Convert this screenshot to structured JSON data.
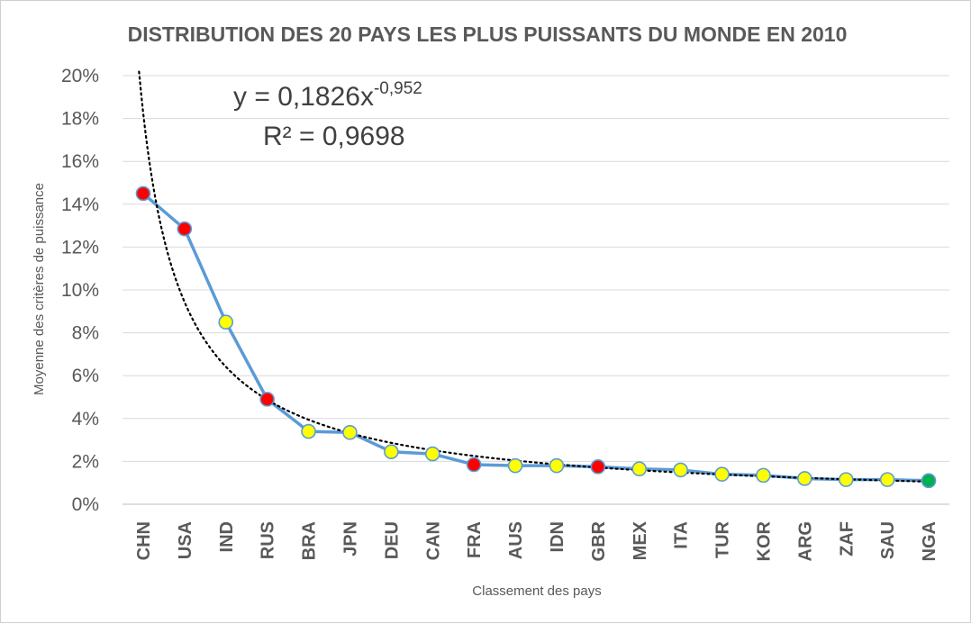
{
  "chart_data": {
    "type": "line",
    "title": "DISTRIBUTION DES 20 PAYS LES PLUS PUISSANTS DU MONDE EN 2010",
    "xlabel": "Classement des pays",
    "ylabel": "Moyenne des critères de puissance",
    "categories": [
      "CHN",
      "USA",
      "IND",
      "RUS",
      "BRA",
      "JPN",
      "DEU",
      "CAN",
      "FRA",
      "AUS",
      "IDN",
      "GBR",
      "MEX",
      "ITA",
      "TUR",
      "KOR",
      "ARG",
      "ZAF",
      "SAU",
      "NGA"
    ],
    "yticks": [
      "0%",
      "2%",
      "4%",
      "6%",
      "8%",
      "10%",
      "12%",
      "14%",
      "16%",
      "18%",
      "20%"
    ],
    "ylim": [
      0,
      20
    ],
    "grid": true,
    "series": [
      {
        "values": [
          14.5,
          12.85,
          8.5,
          4.9,
          3.4,
          3.35,
          2.45,
          2.35,
          1.85,
          1.8,
          1.8,
          1.75,
          1.65,
          1.6,
          1.4,
          1.35,
          1.2,
          1.15,
          1.15,
          1.1
        ],
        "marker_colors": [
          "#ff0000",
          "#ff0000",
          "#ffff00",
          "#ff0000",
          "#ffff00",
          "#ffff00",
          "#ffff00",
          "#ffff00",
          "#ff0000",
          "#ffff00",
          "#ffff00",
          "#ff0000",
          "#ffff00",
          "#ffff00",
          "#ffff00",
          "#ffff00",
          "#ffff00",
          "#ffff00",
          "#ffff00",
          "#00b050"
        ],
        "line_color": "#5b9bd5"
      }
    ],
    "trendline": {
      "type": "power",
      "coefficient": 0.1826,
      "exponent": -0.952,
      "r_squared": 0.9698,
      "style": "dotted",
      "color": "#000000"
    },
    "annotation": {
      "equation_main": "y = 0,1826x",
      "equation_exp": "-0,952",
      "r2": "R² = 0,9698"
    }
  }
}
